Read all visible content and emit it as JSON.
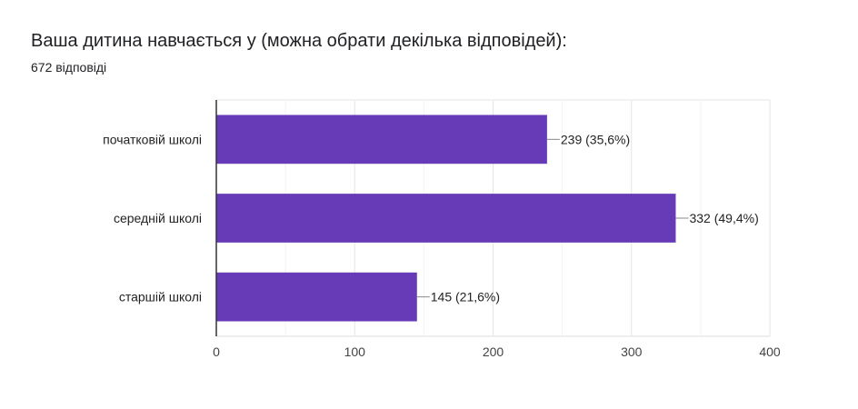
{
  "chart_data": {
    "type": "bar",
    "orientation": "horizontal",
    "title": "Ваша дитина навчається у (можна обрати декілька відповідей):",
    "subtitle": "672 відповіді",
    "categories": [
      "початковій школі",
      "середній школі",
      "старшій школі"
    ],
    "values": [
      239,
      332,
      145
    ],
    "data_labels": [
      "239 (35,6%)",
      "332 (49,4%)",
      "145 (21,6%)"
    ],
    "xlim": [
      0,
      400
    ],
    "x_ticks": [
      0,
      100,
      200,
      300,
      400
    ],
    "grid": true,
    "legend": "none",
    "bar_color": "#673ab7"
  }
}
